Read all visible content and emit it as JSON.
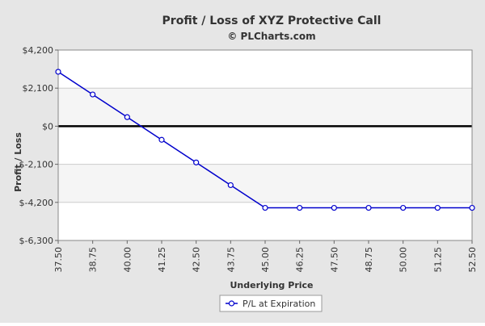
{
  "chart_data": {
    "type": "line",
    "title": "Profit / Loss of XYZ Protective Call",
    "subtitle": "© PLCharts.com",
    "xlabel": "Underlying Price",
    "ylabel": "Profit / Loss",
    "categories": [
      "37.50",
      "38.75",
      "40.00",
      "41.25",
      "42.50",
      "43.75",
      "45.00",
      "46.25",
      "47.50",
      "48.75",
      "50.00",
      "51.25",
      "52.50"
    ],
    "x": [
      37.5,
      38.75,
      40.0,
      41.25,
      42.5,
      43.75,
      45.0,
      46.25,
      47.5,
      48.75,
      50.0,
      51.25,
      52.5
    ],
    "series": [
      {
        "name": "P/L at Expiration",
        "color": "#0000cc",
        "values": [
          3000,
          1750,
          500,
          -750,
          -2000,
          -3250,
          -4500,
          -4500,
          -4500,
          -4500,
          -4500,
          -4500,
          -4500
        ]
      }
    ],
    "ylim": [
      -6300,
      4200
    ],
    "yticks": [
      4200,
      2100,
      0,
      -2100,
      -4200,
      -6300
    ],
    "ytick_labels": [
      "$4,200",
      "$2,100",
      "$0",
      "$-2,100",
      "$-4,200",
      "$-6,300"
    ],
    "grid": true,
    "legend": "bottom-center",
    "zero_line": true,
    "colors": {
      "background": "#e6e6e6",
      "plot_band_light": "#ffffff",
      "plot_band_shaded": "#f5f5f5",
      "gridline": "#cccccc",
      "zero_line": "#000000",
      "series": "#0000cc"
    }
  }
}
